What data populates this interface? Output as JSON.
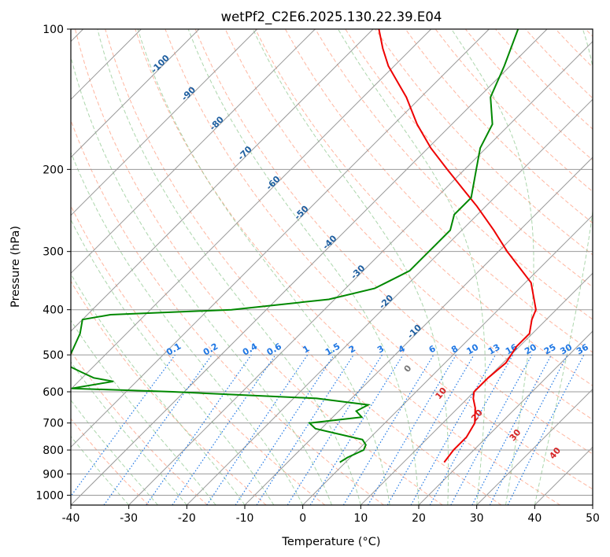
{
  "chart_data": {
    "type": "line",
    "diagram": "skew-T log-P",
    "title": "wetPf2_C2E6.2025.130.22.39.E04",
    "xlabel": "Temperature (°C)",
    "ylabel": "Pressure (hPa)",
    "xlim": [
      -40,
      50
    ],
    "ylim": [
      1050,
      100
    ],
    "y_scale": "log",
    "x_ticks": [
      -40,
      -30,
      -20,
      -10,
      0,
      10,
      20,
      30,
      40,
      50
    ],
    "y_ticks": [
      100,
      200,
      300,
      400,
      500,
      600,
      700,
      800,
      900,
      1000
    ],
    "grid": true,
    "series": [
      {
        "color": "#ee0000",
        "pressure": [
          850,
          800,
          750,
          700,
          650,
          620,
          600,
          560,
          520,
          480,
          450,
          420,
          400,
          350,
          300,
          270,
          240,
          220,
          200,
          180,
          160,
          140,
          120,
          110,
          100
        ],
        "temperature": [
          17,
          16.5,
          16.5,
          15.5,
          13,
          11,
          10,
          10,
          10.5,
          9.5,
          9.5,
          7.5,
          6.5,
          1,
          -8.5,
          -14.5,
          -21.5,
          -27,
          -33,
          -39.5,
          -46,
          -52.5,
          -61,
          -65,
          -69
        ]
      },
      {
        "color": "#008800",
        "pressure": [
          850,
          830,
          800,
          780,
          760,
          720,
          700,
          680,
          660,
          640,
          620,
          600,
          590,
          570,
          560,
          550,
          540,
          530,
          500,
          450,
          420,
          410,
          400,
          380,
          360,
          350,
          330,
          310,
          290,
          270,
          250,
          230,
          200,
          180,
          160,
          140,
          120,
          100
        ],
        "dewpoint": [
          -1,
          -0.5,
          1,
          0.5,
          -1,
          -11,
          -13,
          -5,
          -7,
          -6,
          -16,
          -42,
          -60,
          -54,
          -58,
          -60,
          -62,
          -64,
          -66,
          -68,
          -70,
          -66,
          -46,
          -31,
          -25,
          -24,
          -22,
          -22,
          -22,
          -22,
          -24,
          -24,
          -28,
          -31,
          -33,
          -38,
          -41,
          -45
        ]
      }
    ],
    "dry_adiabats_label_row": [
      "-100",
      "-90",
      "-80",
      "-70",
      "-60",
      "-50",
      "-40",
      "-30",
      "-20",
      "-10"
    ],
    "mixing_ratio_labels": [
      "0.1",
      "0.2",
      "0.4",
      "0.6",
      "1",
      "1.5",
      "2",
      "3",
      "4",
      "6",
      "8",
      "10",
      "13",
      "16",
      "20",
      "25",
      "30",
      "36"
    ],
    "moist_adiabat_labels": [
      "0",
      "10",
      "20",
      "30",
      "40"
    ],
    "colors": {
      "temperature": "#ee0000",
      "dewpoint": "#008800",
      "isotherm": "#999999",
      "dry_adiabat": "#ff9e80",
      "moist_adiabat": "#7fc07f",
      "mixing_ratio": "#1f77e4",
      "dry_label": "#1f5fa0",
      "moist_label": "#d62728"
    }
  }
}
